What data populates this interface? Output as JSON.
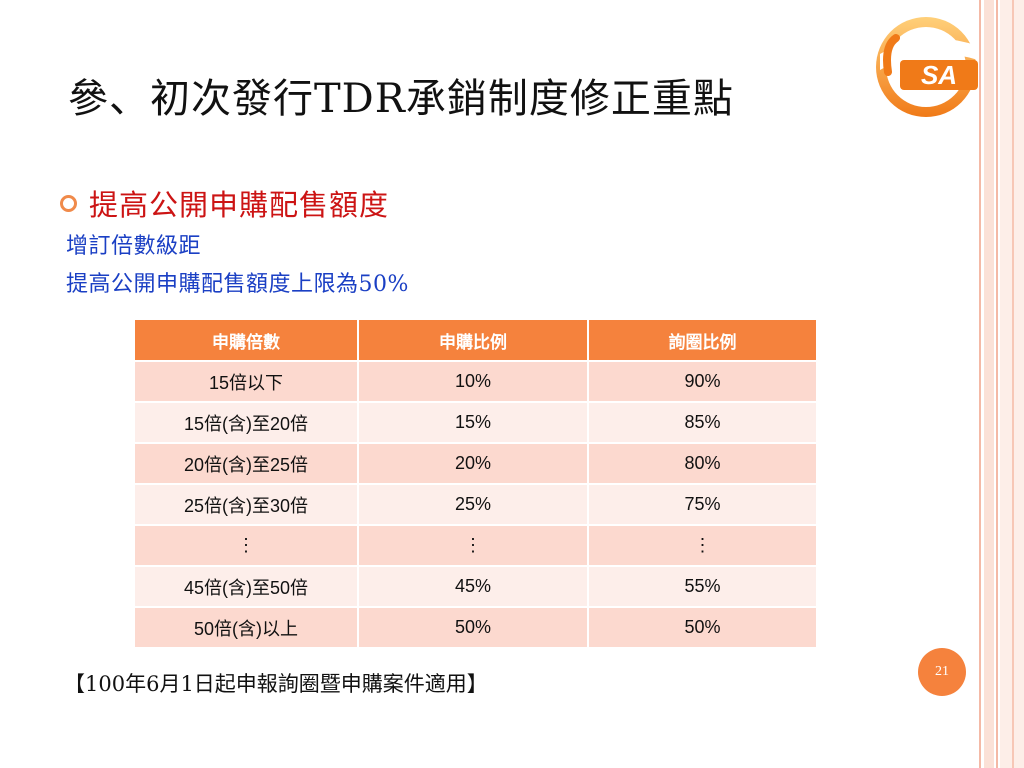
{
  "slide": {
    "title": "參、初次發行TDR承銷制度修正重點",
    "bullet": "提高公開申購配售額度",
    "sub_lines": [
      "增訂倍數級距",
      "提高公開申購配售額度上限為50%"
    ],
    "footnote": "【100年6月1日起申報詢圈暨申購案件適用】",
    "page_number": "21",
    "logo_text": "SA"
  },
  "table": {
    "headers": [
      "申購倍數",
      "申購比例",
      "詢圈比例"
    ],
    "rows": [
      [
        "15倍以下",
        "10%",
        "90%"
      ],
      [
        "15倍(含)至20倍",
        "15%",
        "85%"
      ],
      [
        "20倍(含)至25倍",
        "20%",
        "80%"
      ],
      [
        "25倍(含)至30倍",
        "25%",
        "75%"
      ],
      [
        "⋮",
        "⋮",
        "⋮"
      ],
      [
        "45倍(含)至50倍",
        "45%",
        "55%"
      ],
      [
        "50倍(含)以上",
        "50%",
        "50%"
      ]
    ]
  },
  "colors": {
    "accent": "#f5823d",
    "bullet_red": "#cc1414",
    "sub_blue": "#1a3fc4",
    "row_odd": "#fcd9cf",
    "row_even": "#fdeeea"
  }
}
